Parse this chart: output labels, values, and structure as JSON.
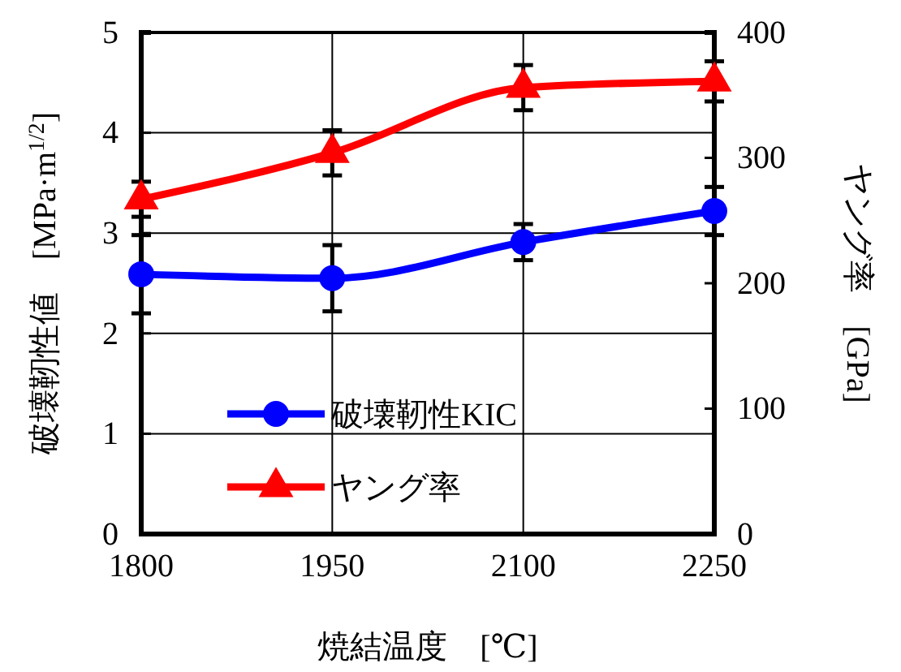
{
  "chart_data": {
    "type": "line",
    "xlabel": "焼結温度　[℃]",
    "ylabel": "破壊靭性値　[MPa·m$^{1/2}$]",
    "y2label": "ヤング率　[GPa]",
    "x": [
      1800,
      1950,
      2100,
      2250
    ],
    "series": [
      {
        "name": "破壊靭性KIC",
        "color": "#0000ff",
        "marker": "circle",
        "values": [
          2.59,
          2.55,
          2.91,
          3.22
        ],
        "errors": [
          0.39,
          0.33,
          0.18,
          0.24
        ]
      },
      {
        "name": "ヤング率",
        "color": "#ff0000",
        "marker": "triangle",
        "axis": "y2",
        "values": [
          267,
          304,
          356,
          361
        ],
        "errors": [
          14,
          18,
          18,
          16
        ]
      }
    ],
    "xlim": [
      1800,
      2250
    ],
    "xticks": [
      1800,
      1950,
      2100,
      2250
    ],
    "ylim": [
      0,
      5
    ],
    "yticks": [
      0,
      1,
      2,
      3,
      4,
      5
    ],
    "y2lim": [
      0,
      400
    ],
    "y2ticks": [
      0,
      100,
      200,
      300,
      400
    ],
    "grid": true,
    "legend": "bottom left"
  }
}
